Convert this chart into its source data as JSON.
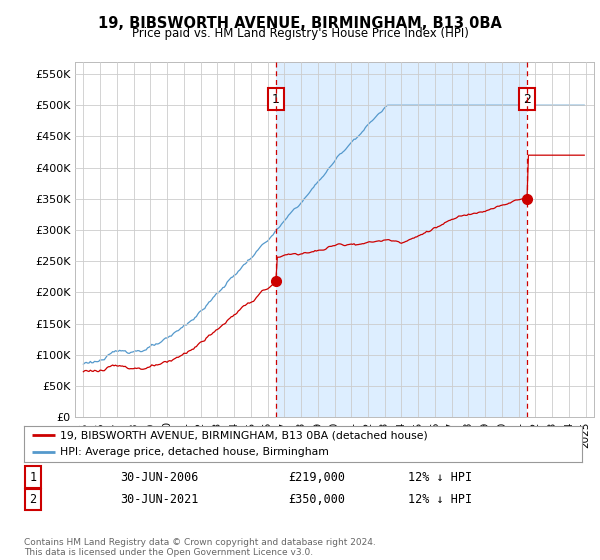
{
  "title": "19, BIBSWORTH AVENUE, BIRMINGHAM, B13 0BA",
  "subtitle": "Price paid vs. HM Land Registry's House Price Index (HPI)",
  "ylabel_ticks": [
    "£0",
    "£50K",
    "£100K",
    "£150K",
    "£200K",
    "£250K",
    "£300K",
    "£350K",
    "£400K",
    "£450K",
    "£500K",
    "£550K"
  ],
  "ytick_vals": [
    0,
    50000,
    100000,
    150000,
    200000,
    250000,
    300000,
    350000,
    400000,
    450000,
    500000,
    550000
  ],
  "ylim": [
    0,
    570000
  ],
  "xmin_year": 1994.5,
  "xmax_year": 2025.5,
  "xtick_years": [
    1995,
    1996,
    1997,
    1998,
    1999,
    2000,
    2001,
    2002,
    2003,
    2004,
    2005,
    2006,
    2007,
    2008,
    2009,
    2010,
    2011,
    2012,
    2013,
    2014,
    2015,
    2016,
    2017,
    2018,
    2019,
    2020,
    2021,
    2022,
    2023,
    2024,
    2025
  ],
  "red_line_color": "#cc0000",
  "blue_line_color": "#5599cc",
  "shade_color": "#ddeeff",
  "grid_color": "#cccccc",
  "legend_label_red": "19, BIBSWORTH AVENUE, BIRMINGHAM, B13 0BA (detached house)",
  "legend_label_blue": "HPI: Average price, detached house, Birmingham",
  "annotation1": {
    "num": "1",
    "date": "30-JUN-2006",
    "price": "£219,000",
    "pct": "12% ↓ HPI"
  },
  "annotation2": {
    "num": "2",
    "date": "30-JUN-2021",
    "price": "£350,000",
    "pct": "12% ↓ HPI"
  },
  "footer": "Contains HM Land Registry data © Crown copyright and database right 2024.\nThis data is licensed under the Open Government Licence v3.0.",
  "sale1_year": 2006.5,
  "sale1_price": 219000,
  "sale2_year": 2021.5,
  "sale2_price": 350000
}
